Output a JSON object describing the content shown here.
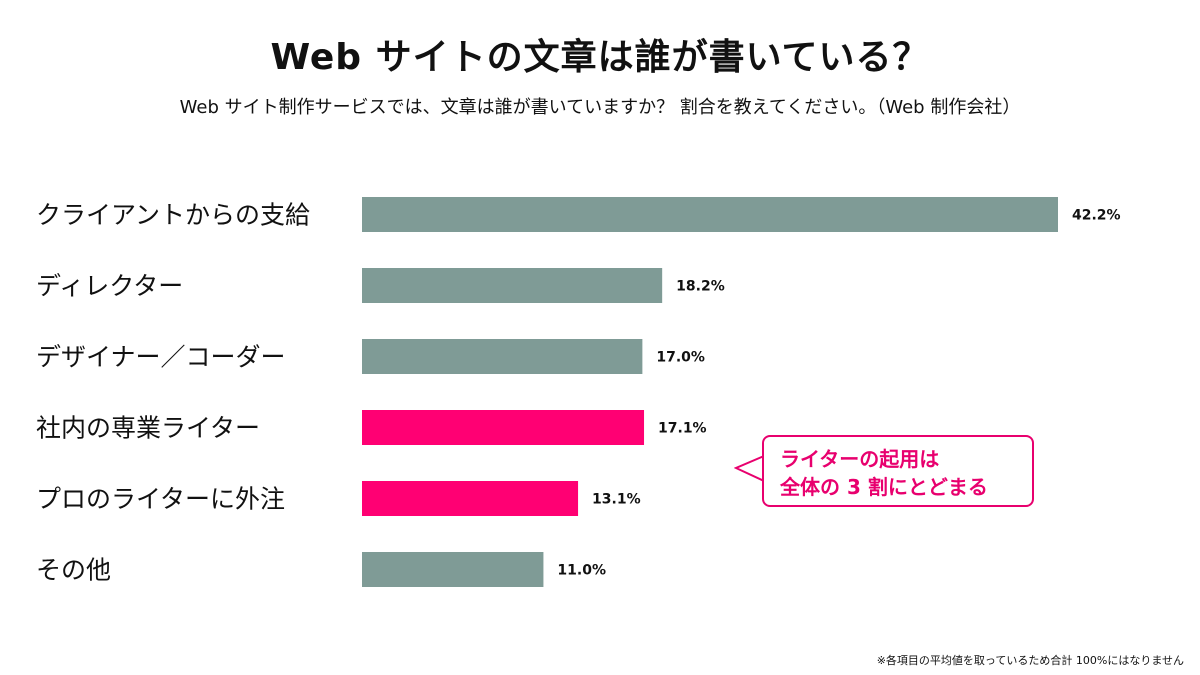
{
  "chart_data": {
    "type": "bar",
    "orientation": "horizontal",
    "title": "Web サイトの文章は誰が書いている？",
    "subtitle": "Web サイト制作サービスでは、文章は誰が書いていますか？ 割合を教えてください。（Web 制作会社）",
    "categories": [
      "クライアントからの支給",
      "ディレクター",
      "デザイナー／コーダー",
      "社内の専業ライター",
      "プロのライターに外注",
      "その他"
    ],
    "values": [
      42.2,
      18.2,
      17.0,
      17.1,
      13.1,
      11.0
    ],
    "value_labels": [
      "42.2%",
      "18.2%",
      "17.0%",
      "17.1%",
      "13.1%",
      "11.0%"
    ],
    "highlighted": [
      false,
      false,
      false,
      true,
      true,
      false
    ],
    "xlim": [
      0,
      42.2
    ],
    "grid": false,
    "legend": "none",
    "colors": {
      "default": "#7f9b96",
      "highlight": "#ff0073"
    },
    "annotation": {
      "line1": "ライターの起用は",
      "line2": "全体の 3 割にとどまる"
    },
    "footnote": "※各項目の平均値を取っているため合計 100%にはなりません"
  }
}
